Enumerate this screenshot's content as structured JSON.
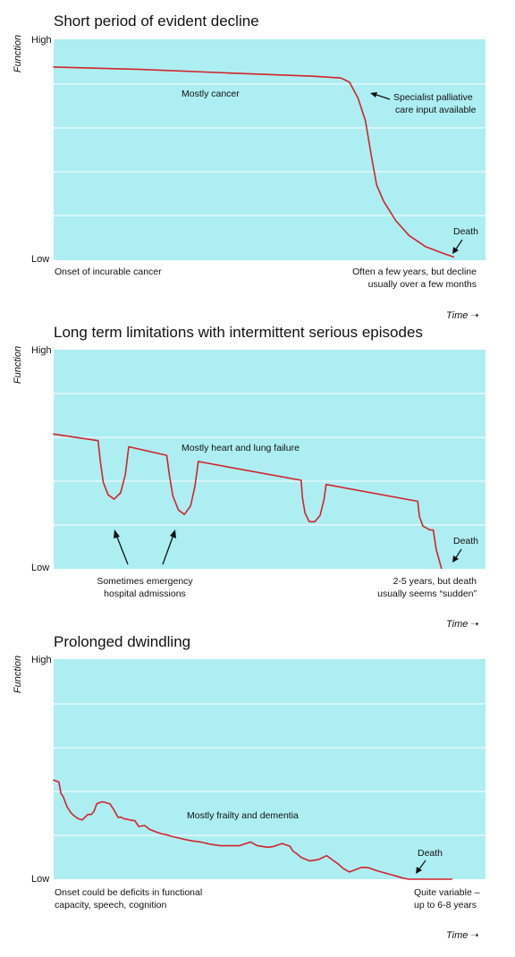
{
  "chart_data": [
    {
      "type": "line",
      "title": "Short period of evident decline",
      "ylabel": "Function",
      "xlabel": "Time",
      "y_ticks": [
        "High",
        "Low"
      ],
      "ylim": [
        0,
        100
      ],
      "xlim": [
        0,
        100
      ],
      "grid": true,
      "series": [
        {
          "x": [
            0,
            20,
            40,
            60,
            66.5,
            68.5,
            70.5,
            72.2,
            73.6,
            74.8,
            76.4,
            79.2,
            82.3,
            86.1,
            90.4,
            92.6
          ],
          "y": [
            87.5,
            86.4,
            84.8,
            83.3,
            82.5,
            80.6,
            73.3,
            63.2,
            46.9,
            34.0,
            26.8,
            18.0,
            11.2,
            6.2,
            3.0,
            1.5
          ]
        }
      ],
      "annotations": {
        "series_label": "Mostly cancer",
        "callout": "Specialist palliative\ncare input available",
        "death": "Death",
        "start": "Onset of incurable cancer",
        "duration": "Often a few years, but decline\nusually over a few months"
      }
    },
    {
      "type": "line",
      "title": "Long term limitations with intermittent serious episodes",
      "ylabel": "Function",
      "xlabel": "Time",
      "y_ticks": [
        "High",
        "Low"
      ],
      "ylim": [
        0,
        100
      ],
      "xlim": [
        0,
        100
      ],
      "grid": true,
      "series": [
        {
          "x": [
            0,
            10.3,
            10.8,
            11.5,
            12.6,
            14.0,
            15.5,
            16.6,
            17.4,
            26.2,
            26.8,
            27.6,
            28.9,
            30.3,
            31.7,
            32.7,
            33.5,
            57.3,
            57.6,
            58.2,
            59.2,
            60.5,
            61.7,
            62.6,
            63.1,
            84.3,
            84.7,
            85.5,
            87.1,
            87.9,
            88.6,
            89.8
          ],
          "y": [
            61.5,
            58.5,
            49.2,
            39.5,
            33.8,
            31.8,
            34.7,
            43.1,
            55.7,
            51.8,
            42.9,
            33.3,
            26.8,
            24.8,
            28.7,
            37.4,
            49.0,
            40.4,
            32.7,
            25.5,
            21.5,
            21.5,
            24.4,
            31.6,
            38.5,
            30.8,
            23.9,
            19.5,
            17.8,
            17.7,
            8.8,
            0.3
          ]
        }
      ],
      "annotations": {
        "series_label": "Mostly heart and lung failure",
        "callout": "Sometimes emergency\nhospital admissions",
        "death": "Death",
        "duration": "2-5 years, but death\nusually seems “sudden”"
      }
    },
    {
      "type": "line",
      "title": "Prolonged dwindling",
      "ylabel": "Function",
      "xlabel": "Time",
      "y_ticks": [
        "High",
        "Low"
      ],
      "ylim": [
        0,
        100
      ],
      "xlim": [
        0,
        100
      ],
      "grid": true,
      "series": [
        {
          "x": [
            0,
            1.2,
            1.7,
            2.2,
            3.1,
            4.0,
            4.7,
            5.6,
            6.6,
            7.9,
            8.7,
            9.3,
            10.0,
            11.0,
            11.7,
            12.5,
            13.0,
            13.8,
            14.9,
            15.6,
            16.3,
            17.2,
            17.9,
            18.8,
            19.7,
            21.1,
            22.2,
            23.7,
            24.3,
            24.9,
            26.1,
            27.2,
            29.0,
            30.5,
            32.1,
            34.0,
            36.5,
            38.6,
            40.8,
            43.0,
            45.6,
            47.1,
            49.5,
            50.8,
            52.9,
            54.7,
            55.4,
            56.3,
            57.3,
            59.3,
            61.3,
            63.2,
            64.4,
            65.9,
            67.1,
            68.5,
            71.3,
            72.9,
            74.1,
            75.1,
            76.6,
            77.9,
            79.5,
            80.9,
            82.2,
            84.1,
            85.6,
            86.8,
            89.4,
            90.8,
            92.2
          ],
          "y": [
            45.0,
            44.2,
            38.9,
            37.6,
            32.9,
            30.2,
            28.9,
            27.6,
            26.9,
            29.4,
            29.4,
            30.6,
            34.3,
            35.1,
            35.1,
            34.5,
            34.3,
            32.0,
            28.1,
            28.2,
            27.5,
            27.2,
            26.8,
            26.6,
            24.0,
            24.4,
            22.7,
            21.5,
            21.1,
            20.7,
            20.2,
            19.5,
            18.7,
            18.0,
            17.4,
            16.9,
            15.8,
            15.2,
            15.2,
            15.2,
            16.9,
            15.3,
            14.5,
            14.8,
            16.2,
            15.0,
            12.8,
            11.6,
            9.9,
            8.3,
            8.9,
            10.7,
            9.0,
            6.9,
            4.8,
            3.3,
            5.4,
            5.2,
            4.4,
            3.7,
            2.9,
            2.2,
            1.3,
            0.5,
            0,
            0,
            0,
            0,
            0,
            0,
            0
          ]
        }
      ],
      "annotations": {
        "series_label": "Mostly frailty and dementia",
        "death": "Death",
        "start": "Onset could be deficits in functional\ncapacity, speech, cognition",
        "duration": "Quite variable –\nup to 6-8 years"
      }
    }
  ],
  "colors": {
    "plot_bg": "#adeef2",
    "grid": "#ffffff",
    "line": "#d2232a",
    "text": "#111111"
  }
}
